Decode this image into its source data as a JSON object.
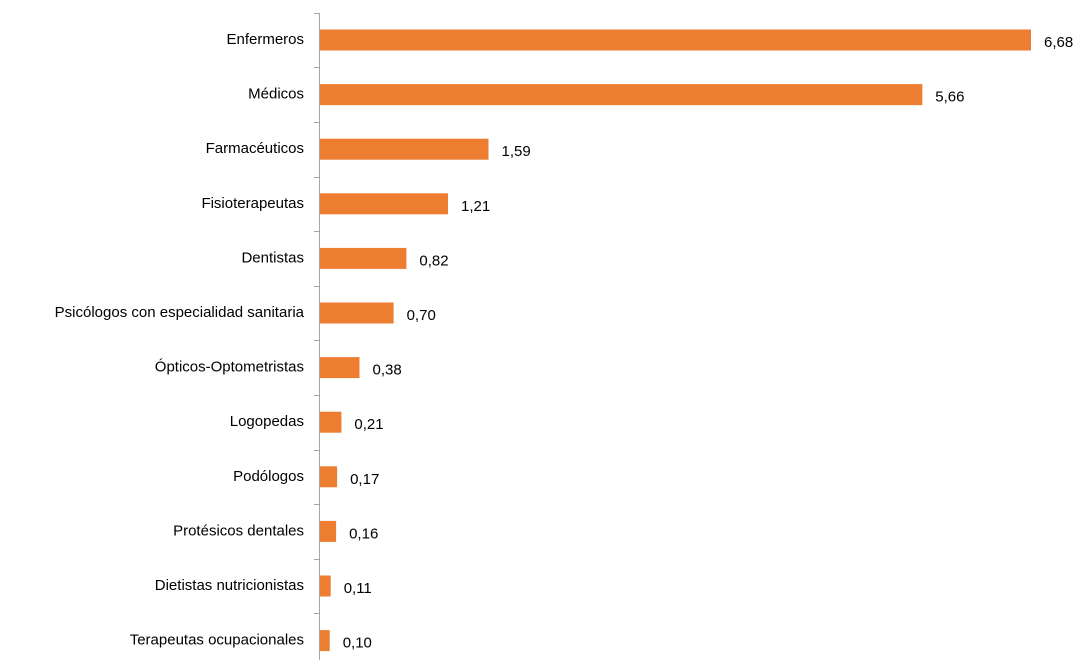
{
  "chart_data": {
    "type": "bar",
    "orientation": "horizontal",
    "categories": [
      "Enfermeros",
      "Médicos",
      "Farmacéuticos",
      "Fisioterapeutas",
      "Dentistas",
      "Psicólogos con especialidad sanitaria",
      "Ópticos-Optometristas",
      "Logopedas",
      "Podólogos",
      "Protésicos dentales",
      "Dietistas nutricionistas",
      "Terapeutas ocupacionales"
    ],
    "values": [
      6.68,
      5.66,
      1.59,
      1.21,
      0.82,
      0.7,
      0.38,
      0.21,
      0.17,
      0.16,
      0.11,
      0.1
    ],
    "value_labels": [
      "6,68",
      "5,66",
      "1,59",
      "1,21",
      "0,82",
      "0,70",
      "0,38",
      "0,21",
      "0,17",
      "0,16",
      "0,11",
      "0,10"
    ],
    "title": "",
    "xlabel": "",
    "ylabel": "",
    "xlim": [
      0,
      6.68
    ],
    "grid": false,
    "legend": "none",
    "bar_color": "#ED7D31",
    "axis_color": "#A6A6A6"
  }
}
